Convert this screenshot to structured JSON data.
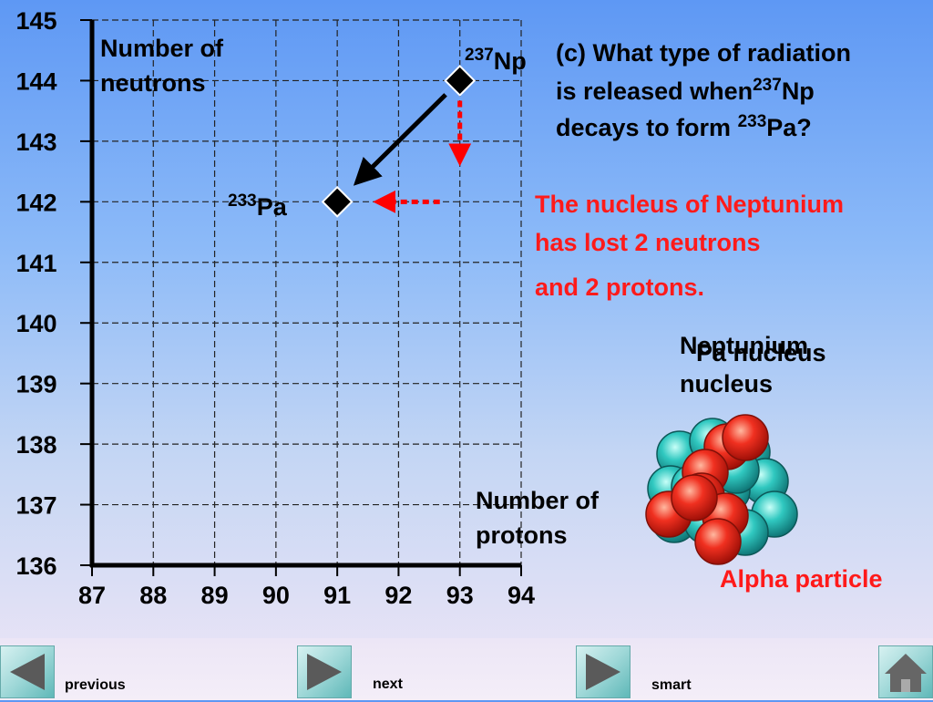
{
  "chart_data": {
    "type": "scatter",
    "ylabel": "Number of neutrons",
    "xlabel": "Number of protons",
    "xlim": [
      87,
      94
    ],
    "ylim": [
      136,
      145
    ],
    "xticks": [
      87,
      88,
      89,
      90,
      91,
      92,
      93,
      94
    ],
    "yticks": [
      136,
      137,
      138,
      139,
      140,
      141,
      142,
      143,
      144,
      145
    ],
    "grid": true,
    "points": [
      {
        "x": 93,
        "y": 144,
        "label_mass": "237",
        "label_symbol": "Np"
      },
      {
        "x": 91,
        "y": 142,
        "label_mass": "233",
        "label_symbol": "Pa"
      }
    ],
    "arrows": [
      {
        "from": [
          93,
          144
        ],
        "to": [
          91,
          142
        ],
        "style": "solid",
        "color": "#000000"
      },
      {
        "from": [
          93,
          144
        ],
        "to": [
          93,
          142
        ],
        "style": "dotted",
        "color": "#ff0000"
      },
      {
        "from": [
          93,
          142
        ],
        "to": [
          91,
          142
        ],
        "style": "dotted",
        "color": "#ff0000"
      }
    ]
  },
  "question": {
    "line1": "(c) What type of radiation",
    "line2_a": "is released when",
    "line2_sup": "237",
    "line2_b": "Np",
    "line3_a": "decays to form",
    "line3_sup": "233",
    "line3_b": "Pa?"
  },
  "answer": {
    "line1": "The nucleus of Neptunium",
    "line2": "has lost 2 neutrons",
    "line3": "and 2 protons."
  },
  "nucleus_labels": {
    "neptunium_line1": "Neptunium",
    "neptunium_line2": "nucleus",
    "pa": "Pa nucleus"
  },
  "alpha_label": "Alpha particle",
  "colors": {
    "proton": "#f03020",
    "neutron": "#30c8c0",
    "answer_text": "#ff1a1a",
    "arrow_red": "#ff0000"
  },
  "nav": {
    "previous": "previous",
    "next": "next",
    "smart": "smart"
  }
}
